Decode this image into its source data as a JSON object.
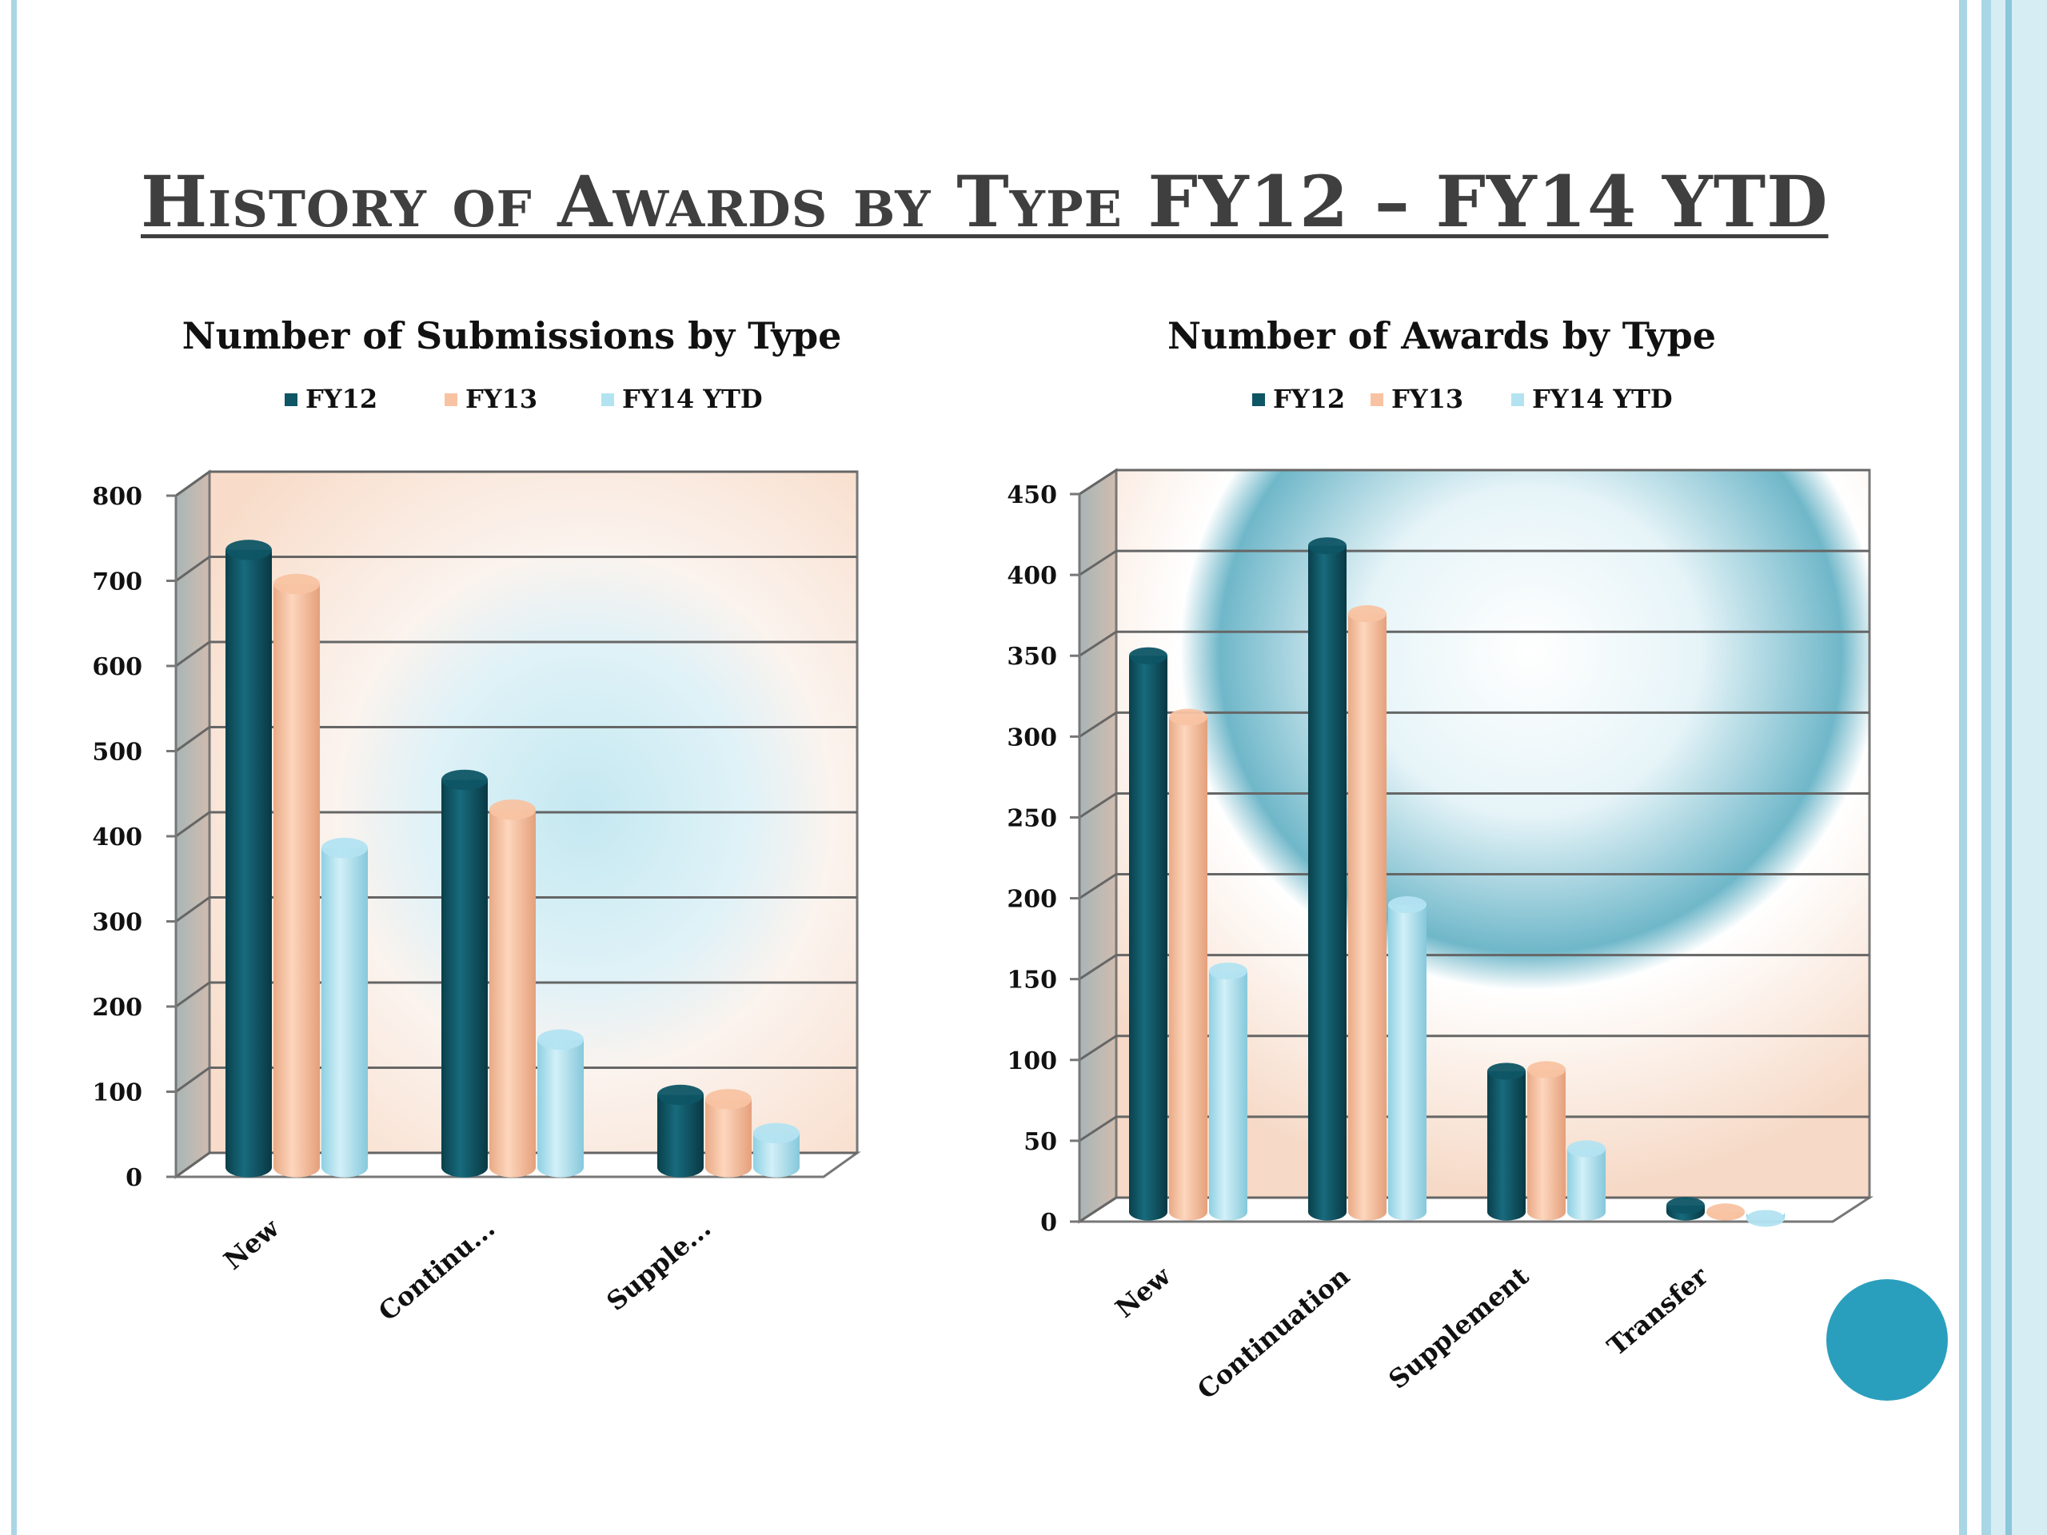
{
  "slide": {
    "title": "History of Awards by Type FY12 – FY14 YTD",
    "accent_color": "#2a9fbd"
  },
  "chart_data": [
    {
      "type": "bar",
      "style": "3d-cylinder",
      "title": "Number of Submissions by Type",
      "categories": [
        "New",
        "Continu...",
        "Supple..."
      ],
      "series": [
        {
          "name": "FY12",
          "values": [
            740,
            470,
            100
          ],
          "color": "#0e5565"
        },
        {
          "name": "FY13",
          "values": [
            700,
            435,
            95
          ],
          "color": "#f8c3a2"
        },
        {
          "name": "FY14 YTD",
          "values": [
            390,
            165,
            55
          ],
          "color": "#b3e3f1"
        }
      ],
      "yticks": [
        "0",
        "100",
        "200",
        "300",
        "400",
        "500",
        "600",
        "700",
        "800"
      ],
      "ylim": [
        0,
        800
      ],
      "xlabel": "",
      "ylabel": "",
      "legend": "top",
      "grid": true
    },
    {
      "type": "bar",
      "style": "3d-cylinder",
      "title": "Number of Awards by Type",
      "categories": [
        "New",
        "Continuation",
        "Supplement",
        "Transfer"
      ],
      "series": [
        {
          "name": "FY12",
          "values": [
            352,
            420,
            95,
            12
          ],
          "color": "#0e5565"
        },
        {
          "name": "FY13",
          "values": [
            314,
            378,
            96,
            8
          ],
          "color": "#f8c3a2"
        },
        {
          "name": "FY14 YTD",
          "values": [
            157,
            198,
            47,
            4
          ],
          "color": "#b3e3f1"
        }
      ],
      "yticks": [
        "0",
        "50",
        "100",
        "150",
        "200",
        "250",
        "300",
        "350",
        "400",
        "450"
      ],
      "ylim": [
        0,
        450
      ],
      "xlabel": "",
      "ylabel": "",
      "legend": "top",
      "grid": true
    }
  ]
}
